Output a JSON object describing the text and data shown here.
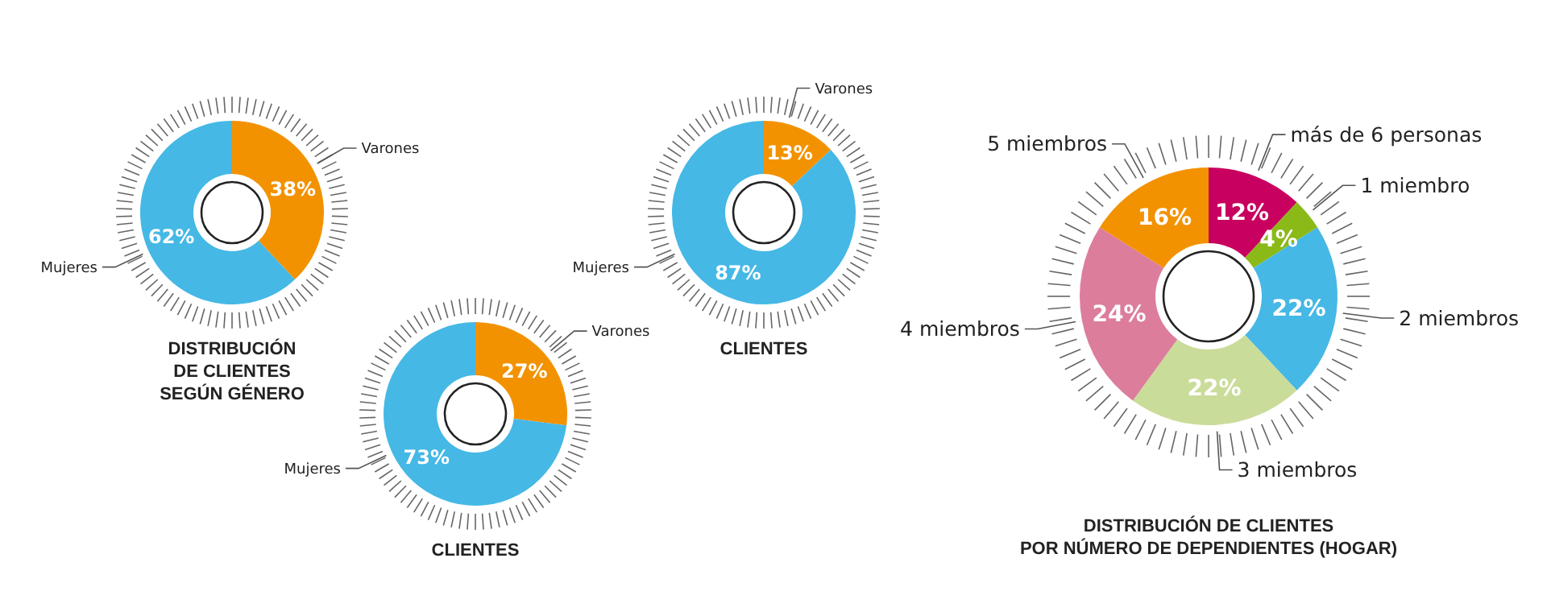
{
  "chart_data": [
    {
      "type": "donut",
      "title": "DISTRIBUCIÓN\nDE CLIENTES\nSEGÚN GÉNERO",
      "categories": [
        "Varones",
        "Mujeres"
      ],
      "values": [
        38,
        62
      ],
      "colors": [
        "#f39200",
        "#45b8e5"
      ],
      "value_labels": [
        "38%",
        "62%"
      ]
    },
    {
      "type": "donut",
      "title": "CLIENTES",
      "categories": [
        "Varones",
        "Mujeres"
      ],
      "values": [
        27,
        73
      ],
      "colors": [
        "#f39200",
        "#45b8e5"
      ],
      "value_labels": [
        "27%",
        "73%"
      ]
    },
    {
      "type": "donut",
      "title": "CLIENTES",
      "categories": [
        "Varones",
        "Mujeres"
      ],
      "values": [
        13,
        87
      ],
      "colors": [
        "#f39200",
        "#45b8e5"
      ],
      "value_labels": [
        "13%",
        "87%"
      ]
    },
    {
      "type": "donut",
      "title": "DISTRIBUCIÓN DE CLIENTES\nPOR NÚMERO DE DEPENDIENTES (HOGAR)",
      "categories": [
        "más de 6 personas",
        "1 miembro",
        "2 miembros",
        "3 miembros",
        "4 miembros",
        "5 miembros"
      ],
      "values": [
        12,
        4,
        22,
        22,
        24,
        16
      ],
      "colors": [
        "#c8005f",
        "#8bb918",
        "#45b8e5",
        "#cadc9a",
        "#dc7d9c",
        "#f39200"
      ],
      "value_labels": [
        "12%",
        "4%",
        "22%",
        "22%",
        "24%",
        "16%"
      ]
    }
  ]
}
